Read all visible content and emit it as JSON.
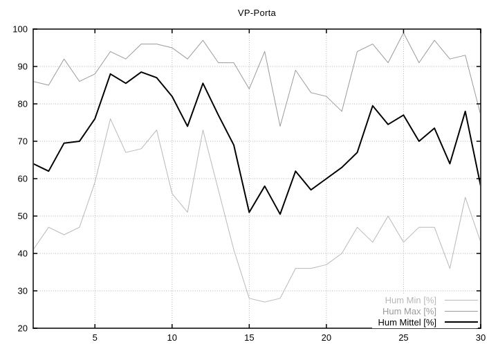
{
  "title": "VP-Porta",
  "colors": {
    "background": "#ffffff",
    "border": "#3f3f3f",
    "grid": "#b0b0b0",
    "hum_min": "#b8b8b8",
    "hum_max": "#9a9a9a",
    "hum_mittel": "#000000"
  },
  "chart_data": {
    "type": "line",
    "title": "VP-Porta",
    "xlabel": "",
    "ylabel": "",
    "xlim": [
      1,
      30
    ],
    "ylim": [
      20,
      100
    ],
    "x_ticks": [
      5,
      10,
      15,
      20,
      25,
      30
    ],
    "y_ticks": [
      20,
      30,
      40,
      50,
      60,
      70,
      80,
      90,
      100
    ],
    "grid": true,
    "legend_position": "bottom-right",
    "x": [
      1,
      2,
      3,
      4,
      5,
      6,
      7,
      8,
      9,
      10,
      11,
      12,
      13,
      14,
      15,
      16,
      17,
      18,
      19,
      20,
      21,
      22,
      23,
      24,
      25,
      26,
      27,
      28,
      29,
      30
    ],
    "series": [
      {
        "name": "Hum Min [%]",
        "color": "#b8b8b8",
        "line_width": 1,
        "values": [
          41,
          47,
          45,
          47,
          59,
          76,
          67,
          68,
          73,
          56,
          51,
          73,
          57,
          41,
          28,
          27,
          28,
          36,
          36,
          37,
          40,
          47,
          43,
          50,
          43,
          47,
          47,
          36,
          55,
          43
        ]
      },
      {
        "name": "Hum Max [%]",
        "color": "#9a9a9a",
        "line_width": 1,
        "values": [
          86,
          85,
          92,
          86,
          88,
          94,
          92,
          96,
          96,
          95,
          92,
          97,
          91,
          91,
          84,
          94,
          74,
          89,
          83,
          82,
          78,
          94,
          96,
          91,
          99,
          91,
          97,
          92,
          93,
          77
        ]
      },
      {
        "name": "Hum Mittel [%]",
        "color": "#000000",
        "line_width": 2,
        "values": [
          64,
          62,
          69.5,
          70,
          76,
          88,
          85.5,
          88.5,
          87,
          82,
          74,
          85.5,
          77,
          69,
          51,
          58,
          50.5,
          62,
          57,
          60,
          63,
          67,
          79.5,
          74.5,
          77,
          70,
          73.5,
          64,
          78,
          58
        ]
      }
    ]
  }
}
